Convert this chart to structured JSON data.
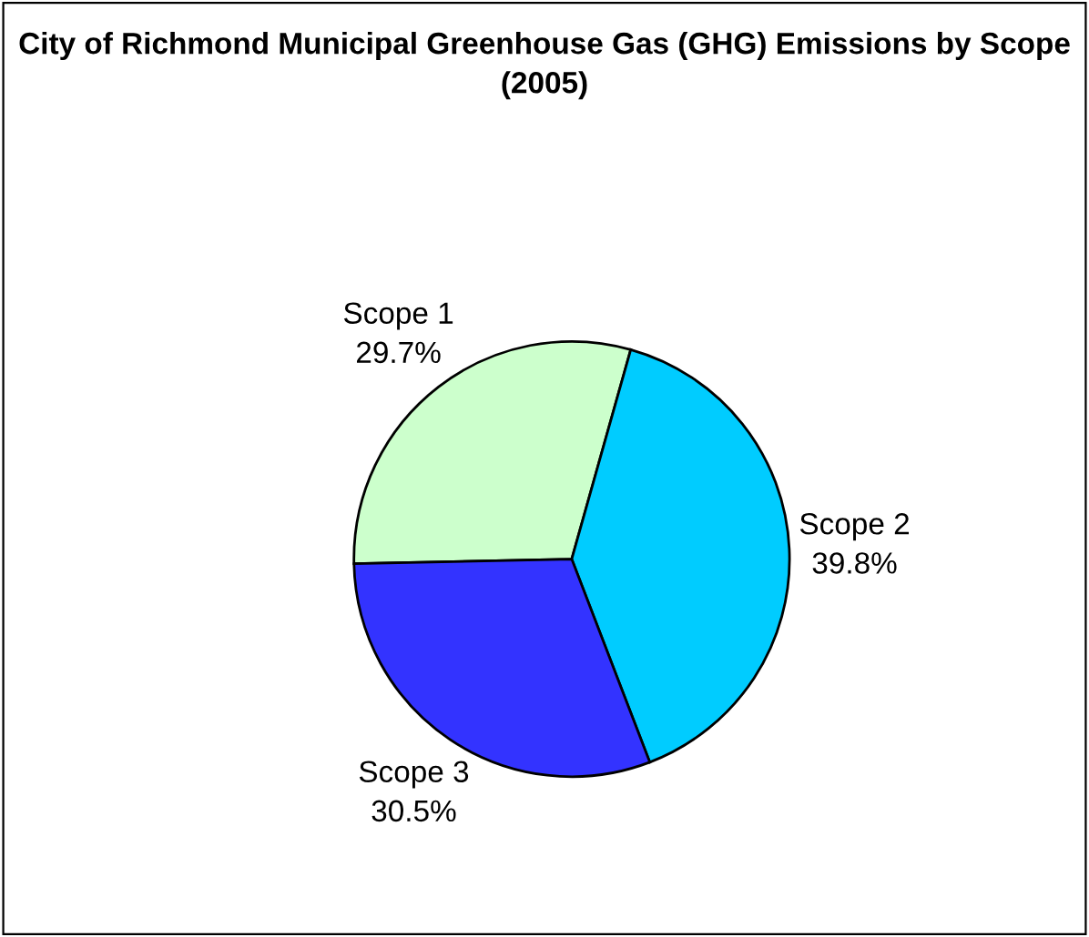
{
  "chart_data": {
    "type": "pie",
    "title": "City of Richmond Municipal Greenhouse Gas (GHG) Emissions by Scope (2005)",
    "categories": [
      "Scope 1",
      "Scope 2",
      "Scope 3"
    ],
    "values": [
      29.7,
      39.8,
      30.5
    ],
    "colors": [
      "#ccffcc",
      "#00ccff",
      "#3333ff"
    ],
    "value_labels": [
      "29.7%",
      "39.8%",
      "30.5%"
    ],
    "legend": false
  }
}
